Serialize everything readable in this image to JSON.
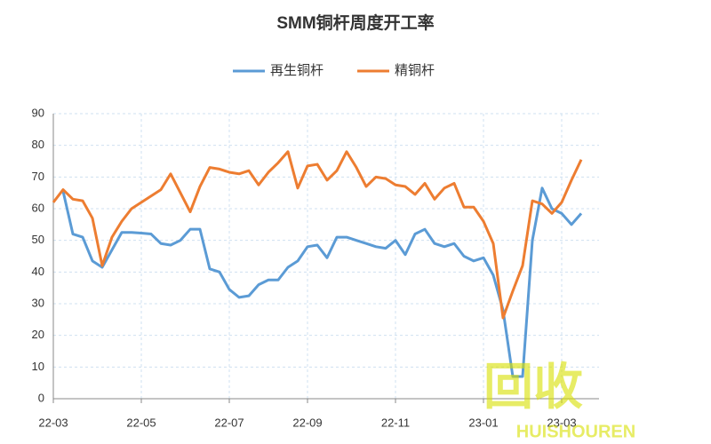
{
  "chart_data": {
    "type": "line",
    "title": "SMM铜杆周度开工率",
    "categories": [
      "22-03",
      null,
      null,
      null,
      null,
      null,
      null,
      null,
      null,
      "22-05",
      null,
      null,
      null,
      null,
      null,
      null,
      null,
      null,
      "22-07",
      null,
      null,
      null,
      null,
      null,
      null,
      null,
      "22-09",
      null,
      null,
      null,
      null,
      null,
      null,
      null,
      null,
      "22-11",
      null,
      null,
      null,
      null,
      null,
      null,
      null,
      null,
      "23-01",
      null,
      null,
      null,
      null,
      null,
      null,
      null,
      "23-03",
      null,
      null
    ],
    "series": [
      {
        "name": "再生铜杆",
        "color": "#5b9bd5",
        "values": [
          null,
          65.5,
          52,
          51,
          43.5,
          41.5,
          47,
          52.5,
          52.5,
          52.3,
          52,
          49,
          48.5,
          50,
          53.5,
          53.5,
          41,
          40,
          34.5,
          32,
          32.5,
          36,
          37.5,
          37.5,
          41.5,
          43.5,
          48,
          48.5,
          44.5,
          51,
          51,
          50,
          49,
          48,
          47.5,
          50,
          45.5,
          52,
          53.5,
          49,
          48,
          49,
          45,
          43.5,
          44.5,
          39,
          28,
          7,
          7,
          50,
          66.5,
          60,
          58.5,
          55,
          58.5
        ]
      },
      {
        "name": "精铜杆",
        "color": "#ed7d31",
        "values": [
          62,
          66,
          63,
          62.5,
          57,
          42,
          51,
          56,
          60,
          62,
          64,
          66,
          71,
          65,
          59,
          67,
          73,
          72.5,
          71.5,
          71,
          72,
          67.5,
          71.5,
          74.5,
          78,
          66.5,
          73.5,
          74,
          69,
          72,
          78,
          73,
          67,
          70,
          69.5,
          67.5,
          67,
          64.5,
          68,
          63,
          66.5,
          68,
          60.5,
          60.5,
          56,
          49,
          25.5,
          34,
          42,
          62.5,
          61.5,
          58.5,
          62,
          69,
          75.5
        ]
      }
    ],
    "ylim": [
      0,
      90
    ],
    "yticks": [
      0,
      10,
      20,
      30,
      40,
      50,
      60,
      70,
      80,
      90
    ],
    "grid": true,
    "legend": "top",
    "watermark": {
      "text": "回收",
      "subtext": "HUISHOUREN"
    }
  }
}
